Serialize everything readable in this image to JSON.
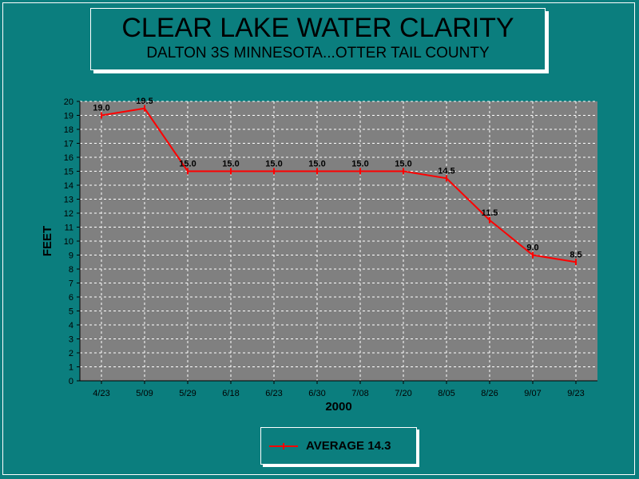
{
  "title": "CLEAR LAKE WATER CLARITY",
  "subtitle": "DALTON 3S MINNESOTA...OTTER TAIL COUNTY",
  "legend": {
    "label": "AVERAGE 14.3",
    "color": "#ff0000"
  },
  "colors": {
    "background": "#0b7e7e",
    "plot_area": "#808080",
    "series": "#ff0000",
    "grid": "#ffffff"
  },
  "chart_data": {
    "type": "line",
    "title": "CLEAR LAKE WATER CLARITY",
    "subtitle": "DALTON 3S MINNESOTA...OTTER TAIL COUNTY",
    "xlabel": "2000",
    "ylabel": "FEET",
    "ylim": [
      0,
      20
    ],
    "yticks": [
      0,
      1,
      2,
      3,
      4,
      5,
      6,
      7,
      8,
      9,
      10,
      11,
      12,
      13,
      14,
      15,
      16,
      17,
      18,
      19,
      20
    ],
    "grid": true,
    "legend_position": "bottom-center",
    "categories": [
      "4/23",
      "5/09",
      "5/29",
      "6/18",
      "6/23",
      "6/30",
      "7/08",
      "7/20",
      "8/05",
      "8/26",
      "9/07",
      "9/23"
    ],
    "series": [
      {
        "name": "AVERAGE 14.3",
        "values": [
          19.0,
          19.5,
          15.0,
          15.0,
          15.0,
          15.0,
          15.0,
          15.0,
          14.5,
          11.5,
          9.0,
          8.5
        ],
        "labels": [
          "19.0",
          "19.5",
          "15.0",
          "15.0",
          "15.0",
          "15.0",
          "15.0",
          "15.0",
          "14.5",
          "11.5",
          "9.0",
          "8.5"
        ]
      }
    ]
  }
}
